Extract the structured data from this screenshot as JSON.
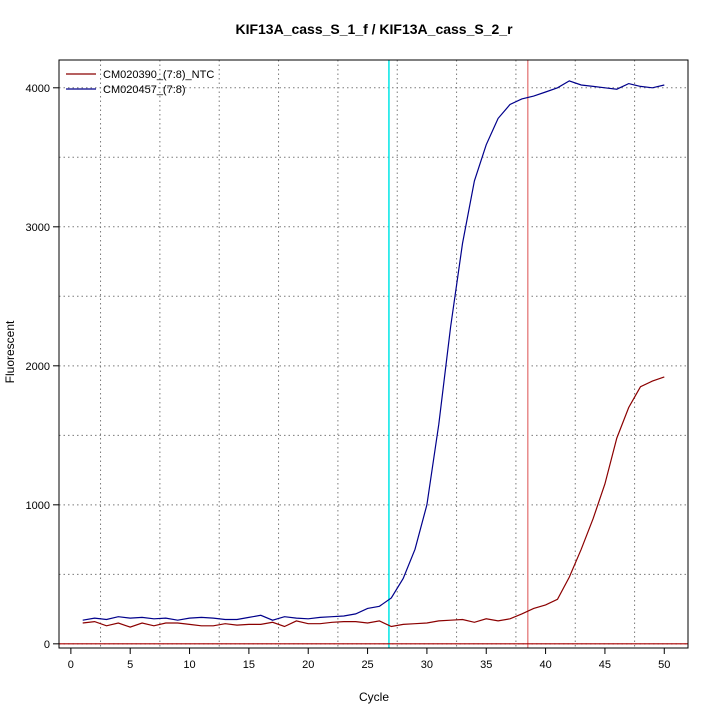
{
  "chart_data": {
    "type": "line",
    "title": "KIF13A_cass_S_1_f / KIF13A_cass_S_2_r",
    "xlabel": "Cycle",
    "ylabel": "Fluorescent",
    "xlim": [
      -1,
      52
    ],
    "ylim": [
      -30,
      4200
    ],
    "xticks": [
      0,
      5,
      10,
      15,
      20,
      25,
      30,
      35,
      40,
      45,
      50
    ],
    "yticks": [
      0,
      1000,
      2000,
      3000,
      4000
    ],
    "grid": true,
    "legend_position": "top-left",
    "vertical_lines": [
      {
        "x": 26.8,
        "color": "#00e5e5"
      },
      {
        "x": 38.5,
        "color": "#e88a8a"
      }
    ],
    "horizontal_lines": [
      {
        "y": 0,
        "color": "#aa0000"
      }
    ],
    "series": [
      {
        "name": "CM020390_(7:8)_NTC",
        "color": "#8b0000",
        "x": [
          1,
          2,
          3,
          4,
          5,
          6,
          7,
          8,
          9,
          10,
          11,
          12,
          13,
          14,
          15,
          16,
          17,
          18,
          19,
          20,
          21,
          22,
          23,
          24,
          25,
          26,
          27,
          28,
          29,
          30,
          31,
          32,
          33,
          34,
          35,
          36,
          37,
          38,
          39,
          40,
          41,
          42,
          43,
          44,
          45,
          46,
          47,
          48,
          49,
          50
        ],
        "values": [
          150,
          160,
          130,
          150,
          120,
          150,
          130,
          150,
          150,
          140,
          130,
          130,
          145,
          135,
          140,
          140,
          155,
          125,
          165,
          145,
          145,
          155,
          160,
          160,
          150,
          165,
          125,
          140,
          145,
          150,
          165,
          170,
          175,
          155,
          180,
          165,
          180,
          215,
          255,
          280,
          320,
          480,
          680,
          900,
          1150,
          1480,
          1700,
          1850,
          1890,
          1920
        ]
      },
      {
        "name": "CM020457_(7:8)",
        "color": "#00008b",
        "x": [
          1,
          2,
          3,
          4,
          5,
          6,
          7,
          8,
          9,
          10,
          11,
          12,
          13,
          14,
          15,
          16,
          17,
          18,
          19,
          20,
          21,
          22,
          23,
          24,
          25,
          26,
          27,
          28,
          29,
          30,
          31,
          32,
          33,
          34,
          35,
          36,
          37,
          38,
          39,
          40,
          41,
          42,
          43,
          44,
          45,
          46,
          47,
          48,
          49,
          50
        ],
        "values": [
          170,
          185,
          175,
          195,
          185,
          190,
          180,
          185,
          170,
          185,
          190,
          185,
          175,
          175,
          190,
          205,
          170,
          195,
          185,
          180,
          190,
          195,
          200,
          215,
          255,
          270,
          330,
          470,
          680,
          1000,
          1580,
          2280,
          2880,
          3330,
          3590,
          3780,
          3880,
          3920,
          3940,
          3970,
          4000,
          4050,
          4020,
          4010,
          4000,
          3990,
          4030,
          4010,
          4000,
          4020
        ]
      }
    ]
  }
}
